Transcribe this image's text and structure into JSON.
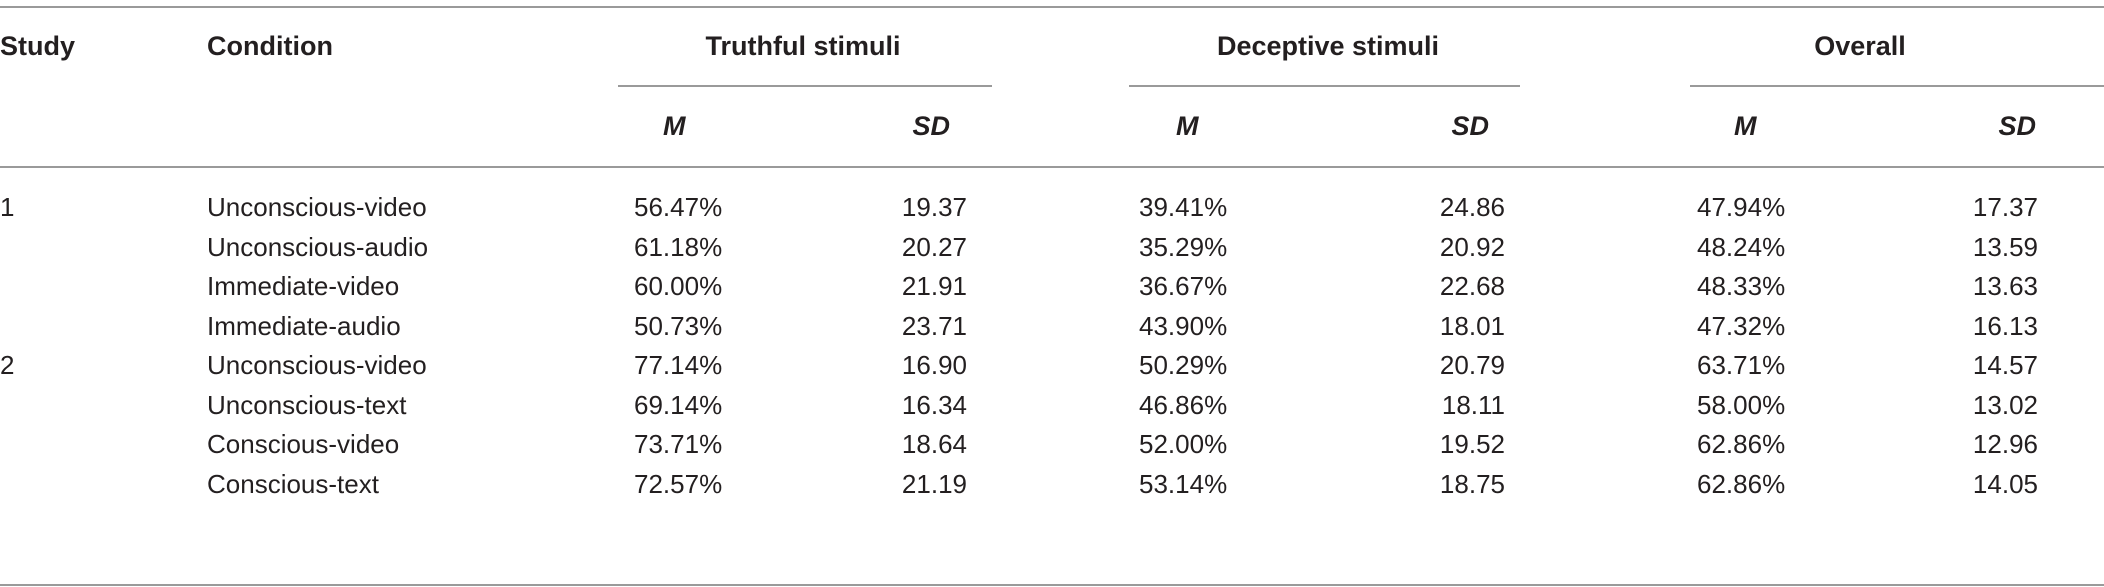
{
  "header": {
    "study": "Study",
    "condition": "Condition",
    "groups": [
      "Truthful stimuli",
      "Deceptive stimuli",
      "Overall"
    ],
    "sub": [
      "M",
      "SD"
    ]
  },
  "rows": [
    {
      "study": "1",
      "condition": "Unconscious-video",
      "tm": "56.47%",
      "tsd": "19.37",
      "dm": "39.41%",
      "dsd": "24.86",
      "om": "47.94%",
      "osd": "17.37"
    },
    {
      "study": "",
      "condition": "Unconscious-audio",
      "tm": "61.18%",
      "tsd": "20.27",
      "dm": "35.29%",
      "dsd": "20.92",
      "om": "48.24%",
      "osd": "13.59"
    },
    {
      "study": "",
      "condition": "Immediate-video",
      "tm": "60.00%",
      "tsd": "21.91",
      "dm": "36.67%",
      "dsd": "22.68",
      "om": "48.33%",
      "osd": "13.63"
    },
    {
      "study": "",
      "condition": "Immediate-audio",
      "tm": "50.73%",
      "tsd": "23.71",
      "dm": "43.90%",
      "dsd": "18.01",
      "om": "47.32%",
      "osd": "16.13"
    },
    {
      "study": "2",
      "condition": "Unconscious-video",
      "tm": "77.14%",
      "tsd": "16.90",
      "dm": "50.29%",
      "dsd": "20.79",
      "om": "63.71%",
      "osd": "14.57"
    },
    {
      "study": "",
      "condition": "Unconscious-text",
      "tm": "69.14%",
      "tsd": "16.34",
      "dm": "46.86%",
      "dsd": "18.11",
      "om": "58.00%",
      "osd": "13.02"
    },
    {
      "study": "",
      "condition": "Conscious-video",
      "tm": "73.71%",
      "tsd": "18.64",
      "dm": "52.00%",
      "dsd": "19.52",
      "om": "62.86%",
      "osd": "12.96"
    },
    {
      "study": "",
      "condition": "Conscious-text",
      "tm": "72.57%",
      "tsd": "21.19",
      "dm": "53.14%",
      "dsd": "18.75",
      "om": "62.86%",
      "osd": "14.05"
    }
  ]
}
